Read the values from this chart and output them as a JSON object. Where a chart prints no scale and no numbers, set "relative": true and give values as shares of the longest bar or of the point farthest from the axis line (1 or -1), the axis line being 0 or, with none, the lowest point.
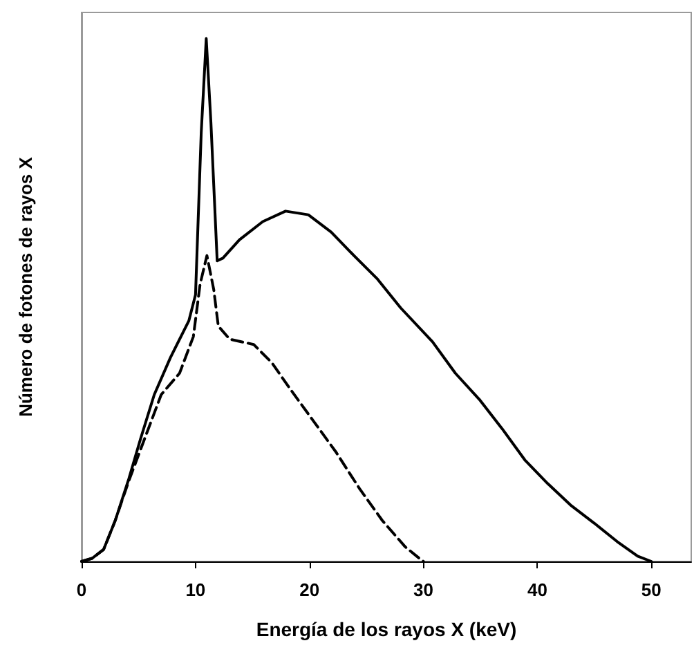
{
  "chart_data": {
    "type": "line",
    "xlabel": "Energía de los rayos X (keV)",
    "ylabel": "Número de fotones de rayos X",
    "relative": true,
    "xlim": [
      0,
      53.5
    ],
    "xticks": [
      0,
      10,
      20,
      30,
      40,
      50
    ],
    "grid": false,
    "marker": "none",
    "series": [
      {
        "color": "#000000",
        "line_style": "solid",
        "x": [
          0,
          0.93,
          1.94,
          2.95,
          4.16,
          5.17,
          6.38,
          7.8,
          9.41,
          10.0,
          10.5,
          10.94,
          11.35,
          11.9,
          12.4,
          13.85,
          15.9,
          17.9,
          19.9,
          21.9,
          23.9,
          25.97,
          28.0,
          30.8,
          32.8,
          34.9,
          36.9,
          38.9,
          40.9,
          42.9,
          45.0,
          47.0,
          48.8,
          50
        ],
        "values": [
          0,
          0.006,
          0.023,
          0.078,
          0.159,
          0.234,
          0.319,
          0.39,
          0.46,
          0.51,
          0.82,
          1.0,
          0.84,
          0.575,
          0.58,
          0.615,
          0.65,
          0.67,
          0.663,
          0.63,
          0.585,
          0.54,
          0.485,
          0.42,
          0.36,
          0.31,
          0.254,
          0.194,
          0.149,
          0.108,
          0.073,
          0.038,
          0.01,
          0
        ]
      },
      {
        "color": "#000000",
        "line_style": "dashed",
        "x": [
          0,
          0.93,
          1.94,
          2.95,
          4.16,
          5.78,
          6.99,
          8.6,
          9.81,
          10.4,
          11.0,
          11.6,
          12.0,
          13.0,
          15.1,
          16.7,
          18.3,
          20.3,
          22.3,
          24.4,
          26.4,
          28.4,
          29.8,
          30
        ],
        "values": [
          0,
          0.006,
          0.023,
          0.078,
          0.155,
          0.249,
          0.319,
          0.36,
          0.43,
          0.53,
          0.585,
          0.52,
          0.45,
          0.425,
          0.415,
          0.38,
          0.33,
          0.27,
          0.21,
          0.139,
          0.078,
          0.028,
          0.003,
          0
        ]
      }
    ]
  }
}
